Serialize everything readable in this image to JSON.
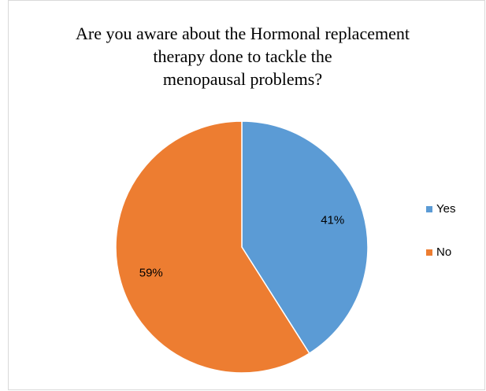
{
  "chart_data": {
    "type": "pie",
    "title": [
      "Are you aware about the Hormonal replacement",
      "therapy done to tackle the",
      "menopausal problems?"
    ],
    "categories": [
      "Yes",
      "No"
    ],
    "values": [
      41,
      59
    ],
    "value_labels": [
      "41%",
      "59%"
    ],
    "colors": [
      "#5b9bd5",
      "#ed7d31"
    ],
    "legend": "right"
  }
}
